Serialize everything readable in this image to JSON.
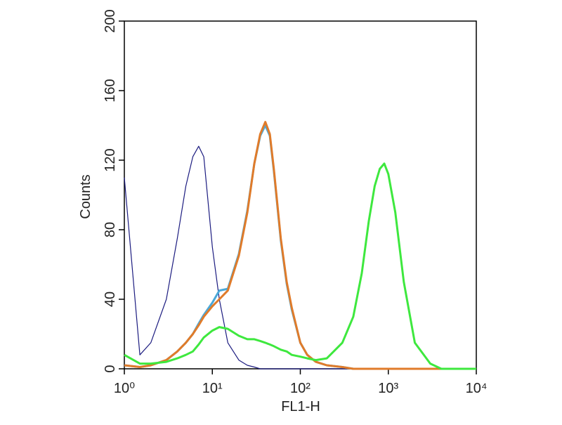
{
  "chart_data": {
    "type": "line",
    "xlabel": "FL1-H",
    "ylabel": "Counts",
    "xscale": "log",
    "xlim": [
      1,
      10000
    ],
    "ylim": [
      0,
      200
    ],
    "xticks": [
      {
        "value": 1,
        "label": "10⁰"
      },
      {
        "value": 10,
        "label": "10¹"
      },
      {
        "value": 100,
        "label": "10²"
      },
      {
        "value": 1000,
        "label": "10³"
      },
      {
        "value": 10000,
        "label": "10⁴"
      }
    ],
    "yticks": [
      0,
      40,
      80,
      120,
      160,
      200
    ],
    "x": [
      1,
      1.5,
      2,
      3,
      4,
      5,
      6,
      7,
      8,
      10,
      12,
      15,
      20,
      25,
      30,
      35,
      40,
      45,
      50,
      60,
      70,
      80,
      100,
      120,
      150,
      200,
      300,
      400,
      500,
      600,
      700,
      800,
      900,
      1000,
      1200,
      1500,
      2000,
      3000,
      4000,
      6000,
      10000
    ],
    "series": [
      {
        "color": "#1c1c80",
        "width": 1.2,
        "values": [
          110,
          8,
          15,
          40,
          75,
          105,
          122,
          128,
          122,
          70,
          40,
          15,
          5,
          2,
          1,
          0,
          0,
          0,
          0,
          0,
          0,
          0,
          0,
          0,
          0,
          0,
          0,
          0,
          0,
          0,
          0,
          0,
          0,
          0,
          0,
          0,
          0,
          0,
          0,
          0,
          0
        ]
      },
      {
        "color": "#4aa8d8",
        "width": 3,
        "values": [
          2,
          1,
          2,
          5,
          10,
          15,
          20,
          26,
          31,
          38,
          45,
          46,
          66,
          91,
          118,
          134,
          140,
          134,
          114,
          74,
          49,
          34,
          15,
          8,
          4,
          2,
          1,
          0,
          0,
          0,
          0,
          0,
          0,
          0,
          0,
          0,
          0,
          0,
          0,
          0,
          0
        ]
      },
      {
        "color": "#e07b2a",
        "width": 3,
        "values": [
          2,
          1,
          2,
          5,
          10,
          15,
          20,
          25,
          30,
          36,
          40,
          45,
          65,
          90,
          118,
          135,
          142,
          135,
          115,
          75,
          50,
          35,
          15,
          8,
          4,
          2,
          1,
          0,
          0,
          0,
          0,
          0,
          0,
          0,
          0,
          0,
          0,
          0,
          0,
          0,
          0
        ]
      },
      {
        "color": "#3ee83e",
        "width": 3,
        "values": [
          8,
          3,
          3,
          4,
          6,
          8,
          10,
          14,
          18,
          22,
          24,
          23,
          19,
          17,
          17,
          16,
          15,
          14,
          13,
          11,
          10,
          8,
          7,
          6,
          5,
          6,
          15,
          30,
          55,
          85,
          105,
          115,
          118,
          112,
          90,
          50,
          15,
          3,
          0,
          0,
          0
        ]
      }
    ]
  }
}
